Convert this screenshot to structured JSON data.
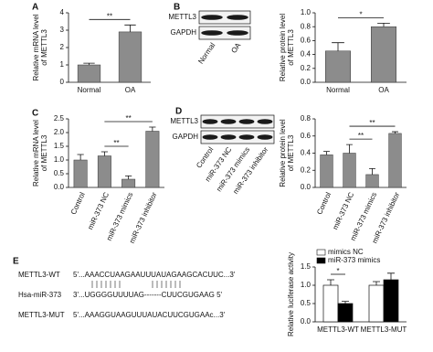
{
  "chart_data": [
    {
      "type": "bar",
      "panel": "A",
      "ylabel": [
        "Relative mRNA level",
        "of METTL3"
      ],
      "categories": [
        "Normal",
        "OA"
      ],
      "values": [
        1.0,
        2.9
      ],
      "errors": [
        0.1,
        0.4
      ],
      "color": "#8c8c8c",
      "ylim": [
        0,
        4
      ],
      "yticks": [
        0,
        1,
        2,
        3,
        4
      ],
      "comparisons": [
        {
          "between": [
            0,
            1
          ],
          "label": "**"
        }
      ]
    },
    {
      "type": "bar",
      "ylabel": [
        "Relative protein level",
        "of METTL3"
      ],
      "categories": [
        "Normal",
        "OA"
      ],
      "values": [
        0.45,
        0.8
      ],
      "errors": [
        0.12,
        0.05
      ],
      "color": "#8c8c8c",
      "ylim": [
        0,
        1
      ],
      "yticks": [
        {
          "value": 0,
          "label": "0.0"
        },
        0.2,
        0.4,
        0.6,
        0.8,
        {
          "value": 1,
          "label": "1.0"
        }
      ],
      "comparisons": [
        {
          "between": [
            0,
            1
          ],
          "label": "*"
        }
      ]
    },
    {
      "type": "bar",
      "panel": "C",
      "ylabel": [
        "Relative mRNA level",
        "of METTL3"
      ],
      "categories": [
        "Control",
        "miR-373 NC",
        "miR-373 mimics",
        "miR-373 inhibitor"
      ],
      "values": [
        1.0,
        1.15,
        0.3,
        2.05
      ],
      "errors": [
        0.2,
        0.15,
        0.12,
        0.15
      ],
      "color": "#8c8c8c",
      "ylim": [
        0,
        2.5
      ],
      "yticks": [
        {
          "value": 0,
          "label": "0.0"
        },
        0.5,
        {
          "value": 1,
          "label": "1.0"
        },
        1.5,
        {
          "value": 2,
          "label": "2.0"
        },
        2.5
      ],
      "comparisons": [
        {
          "between": [
            1,
            2
          ],
          "label": "**"
        },
        {
          "between": [
            1,
            3
          ],
          "label": "**"
        }
      ]
    },
    {
      "type": "bar",
      "ylabel": [
        "Relative protein level",
        "of METTL3"
      ],
      "categories": [
        "Control",
        "miR-373 NC",
        "miR-373 mimics",
        "miR-373 inhibitor"
      ],
      "values": [
        0.38,
        0.4,
        0.15,
        0.63
      ],
      "errors": [
        0.04,
        0.1,
        0.07,
        0.02
      ],
      "color": "#8c8c8c",
      "ylim": [
        0,
        0.8
      ],
      "yticks": [
        {
          "value": 0,
          "label": "0.0"
        },
        0.2,
        0.4,
        0.6,
        0.8
      ],
      "comparisons": [
        {
          "between": [
            1,
            2
          ],
          "label": "**"
        },
        {
          "between": [
            1,
            3
          ],
          "label": "**"
        }
      ]
    },
    {
      "type": "grouped-bar",
      "ylabel": [
        "Relative luciferase activity"
      ],
      "categories": [
        "METTL3-WT",
        "METTL3-MUT"
      ],
      "series": [
        {
          "name": "mimics NC",
          "color": "#ffffff",
          "values": [
            1.0,
            1.0
          ],
          "errors": [
            0.15,
            0.1
          ]
        },
        {
          "name": "miR-373 mimics",
          "color": "#000000",
          "values": [
            0.5,
            1.15
          ],
          "errors": [
            0.06,
            0.18
          ]
        }
      ],
      "ylim": [
        0,
        1.5
      ],
      "yticks": [
        {
          "value": 0,
          "label": "0.0"
        },
        0.5,
        {
          "value": 1,
          "label": "1.0"
        },
        1.5
      ],
      "comparisons": [
        {
          "category": 0,
          "between": [
            0,
            1
          ],
          "label": "*"
        }
      ]
    }
  ],
  "blots": [
    {
      "panel": "B",
      "rows": [
        "METTL3",
        "GAPDH"
      ],
      "lanes": [
        "Normal",
        "OA"
      ]
    },
    {
      "panel": "D",
      "rows": [
        "METTL3",
        "GAPDH"
      ],
      "lanes": [
        "Control",
        "miR-373 NC",
        "miR-373 mimics",
        "miR-373 inhibitor"
      ]
    }
  ],
  "sequences": {
    "panel": "E",
    "rows": [
      {
        "name": "METTL3-WT",
        "seq": "5'...AAACCUAAGAAUUUAUAGAAGCACUUC...3'"
      },
      {
        "name": "Hsa-miR-373",
        "seq": "3'...UGGGGUUUUAG-------CUUCGUGAAG 5'"
      },
      {
        "name": "METTL3-MUT",
        "seq": "5'...AAAGGUAAGUUUAUACUUCGUGAAc...3'"
      }
    ]
  }
}
